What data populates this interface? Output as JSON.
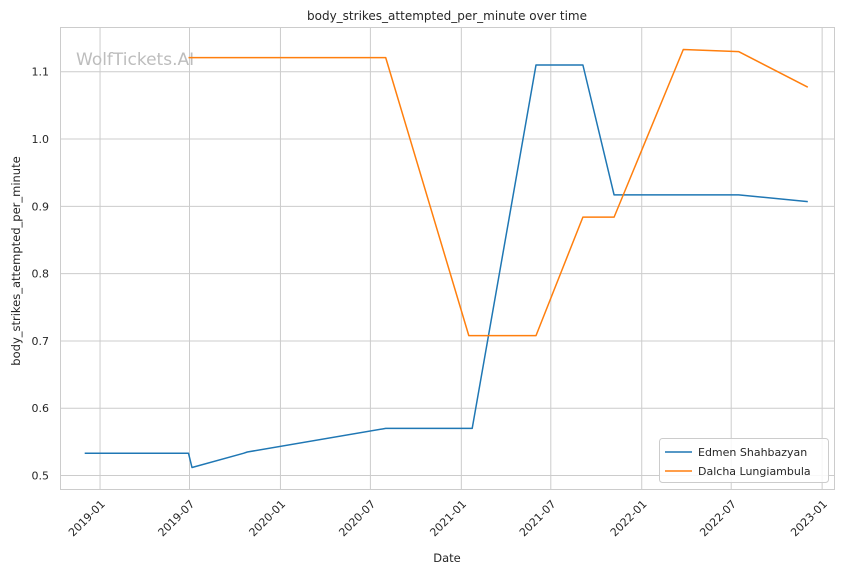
{
  "chart_data": {
    "type": "line",
    "title": "body_strikes_attempted_per_minute over time",
    "xlabel": "Date",
    "ylabel": "body_strikes_attempted_per_minute",
    "watermark": "WolfTickets.AI",
    "xlim": [
      "2018-10-14",
      "2023-01-25"
    ],
    "ylim": [
      0.48,
      1.165
    ],
    "x_ticks": [
      "2019-01",
      "2019-07",
      "2020-01",
      "2020-07",
      "2021-01",
      "2021-07",
      "2022-01",
      "2022-07",
      "2023-01"
    ],
    "y_ticks": [
      "0.5",
      "0.6",
      "0.7",
      "0.8",
      "0.9",
      "1.0",
      "1.1"
    ],
    "grid": true,
    "legend_position": "lower-right",
    "series": [
      {
        "name": "Edmen Shahbazyan",
        "color": "#1f77b4",
        "x": [
          "2018-12-01",
          "2019-06-29",
          "2019-07-06",
          "2019-10-18",
          "2019-10-26",
          "2020-08-01",
          "2021-01-23",
          "2021-06-01",
          "2021-09-04",
          "2021-11-06",
          "2022-07-16",
          "2022-12-03"
        ],
        "y": [
          0.533,
          0.533,
          0.512,
          0.533,
          0.535,
          0.57,
          0.57,
          1.11,
          1.11,
          0.917,
          0.917,
          0.907
        ]
      },
      {
        "name": "Dalcha Lungiambula",
        "color": "#ff7f0e",
        "x": [
          "2019-06-29",
          "2020-08-01",
          "2021-01-16",
          "2021-06-01",
          "2021-09-04",
          "2021-11-06",
          "2022-03-26",
          "2022-07-16",
          "2022-12-03"
        ],
        "y": [
          1.121,
          1.121,
          0.708,
          0.708,
          0.884,
          0.884,
          1.133,
          1.13,
          1.077
        ]
      }
    ]
  }
}
